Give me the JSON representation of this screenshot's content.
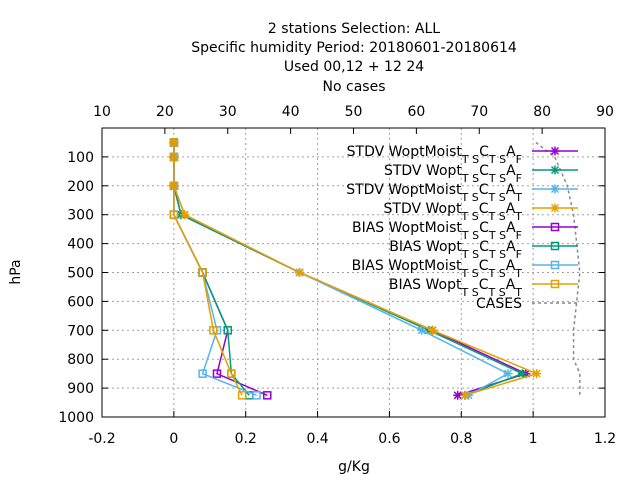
{
  "chart_data": {
    "type": "line",
    "title_lines": [
      "2 stations Selection: ALL",
      "Specific humidity  Period: 20180601-20180614",
      "Used  00,12  + 12 24",
      "No cases"
    ],
    "xlabel": "g/Kg",
    "ylabel": "hPa",
    "xlim": [
      -0.2,
      1.2
    ],
    "x2lim": [
      10,
      90
    ],
    "ylim": [
      1000,
      0
    ],
    "y_reversed": true,
    "xticks": [
      "-0.2",
      "0",
      "0.2",
      "0.4",
      "0.6",
      "0.8",
      "1",
      "1.2"
    ],
    "x2ticks": [
      "10",
      "20",
      "30",
      "40",
      "50",
      "60",
      "70",
      "80",
      "90"
    ],
    "yticks": [
      "100",
      "200",
      "300",
      "400",
      "500",
      "600",
      "700",
      "800",
      "900",
      "1000"
    ],
    "grid": true,
    "legend_position": "top-right",
    "levels": [
      50,
      100,
      200,
      300,
      500,
      700,
      850,
      925
    ],
    "series": [
      {
        "name": "STDV WoptMoist",
        "sub1": "T S",
        "mid": "C",
        "sub2": "T S",
        "end": "A",
        "sub3": "F",
        "color": "#9400d3",
        "marker": "x",
        "values": [
          0.0,
          0.0,
          0.0,
          0.02,
          0.35,
          0.72,
          0.98,
          0.79
        ]
      },
      {
        "name": "STDV Wopt",
        "sub1": "T S",
        "mid": "C",
        "sub2": "T S",
        "end": "A",
        "sub3": "F",
        "color": "#009e73",
        "marker": "x",
        "values": [
          0.0,
          0.0,
          0.0,
          0.02,
          0.35,
          0.71,
          0.97,
          0.81
        ]
      },
      {
        "name": "STDV WoptMoist",
        "sub1": "T S",
        "mid": "C",
        "sub2": "T S",
        "end": "A",
        "sub3": "T",
        "color": "#56b4e9",
        "marker": "x",
        "values": [
          0.0,
          0.0,
          0.0,
          0.03,
          0.35,
          0.69,
          0.93,
          0.82
        ]
      },
      {
        "name": "STDV Wopt",
        "sub1": "T S",
        "mid": "C",
        "sub2": "T S",
        "end": "A",
        "sub3": "T",
        "color": "#e69f00",
        "marker": "x",
        "values": [
          0.0,
          0.0,
          0.0,
          0.03,
          0.35,
          0.72,
          1.01,
          0.81
        ]
      },
      {
        "name": "BIAS WoptMoist",
        "sub1": "T S",
        "mid": "C",
        "sub2": "T S",
        "end": "A",
        "sub3": "F",
        "color": "#9400d3",
        "marker": "square",
        "values": [
          0.0,
          0.0,
          0.0,
          0.0,
          0.08,
          0.15,
          0.12,
          0.26
        ]
      },
      {
        "name": "BIAS Wopt",
        "sub1": "T S",
        "mid": "C",
        "sub2": "T S",
        "end": "A",
        "sub3": "F",
        "color": "#009e73",
        "marker": "square",
        "values": [
          0.0,
          0.0,
          0.0,
          0.0,
          0.08,
          0.15,
          0.16,
          0.21
        ]
      },
      {
        "name": "BIAS WoptMoist",
        "sub1": "T S",
        "mid": "C",
        "sub2": "T S",
        "end": "A",
        "sub3": "T",
        "color": "#56b4e9",
        "marker": "square",
        "values": [
          0.0,
          0.0,
          0.0,
          0.0,
          0.08,
          0.12,
          0.08,
          0.23
        ]
      },
      {
        "name": "BIAS Wopt",
        "sub1": "T S",
        "mid": "C",
        "sub2": "T S",
        "end": "A",
        "sub3": "T",
        "color": "#e69f00",
        "marker": "square",
        "values": [
          0.0,
          0.0,
          0.0,
          0.0,
          0.08,
          0.11,
          0.16,
          0.19
        ]
      },
      {
        "name": "CASES",
        "color": "#888888",
        "dashed": true,
        "x2_values": [
          79,
          82,
          84,
          85,
          86,
          85,
          85,
          86,
          86
        ],
        "levels": [
          50,
          100,
          200,
          300,
          500,
          700,
          800,
          850,
          925
        ]
      }
    ]
  }
}
